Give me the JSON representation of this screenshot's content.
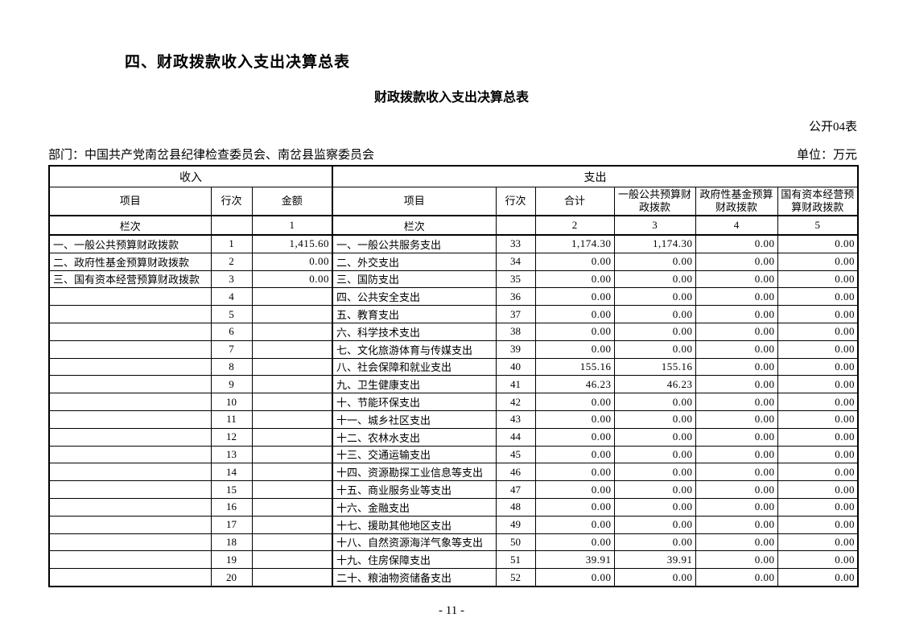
{
  "page": {
    "section_title": "四、财政拨款收入支出决算总表",
    "table_title": "财政拨款收入支出决算总表",
    "table_code": "公开04表",
    "department_label": "部门：中国共产党南岔县纪律检查委员会、南岔县监察委员会",
    "unit_label": "单位：万元",
    "page_number": "- 11 -"
  },
  "table": {
    "income_header": "收入",
    "expense_header": "支出",
    "income_columns": [
      "项目",
      "行次",
      "金额"
    ],
    "expense_columns": [
      "项目",
      "行次",
      "合计",
      "一般公共预算财政拨款",
      "政府性基金预算财政拨款",
      "国有资本经营预算财政拨款"
    ],
    "index_row": [
      "栏次",
      "",
      "1",
      "栏次",
      "",
      "2",
      "3",
      "4",
      "5"
    ],
    "rows": [
      {
        "income_item": "一、一般公共预算财政拨款",
        "income_line": "1",
        "income_amount": "1,415.60",
        "expense_item": "一、一般公共服务支出",
        "expense_line": "33",
        "total": "1,174.30",
        "general_budget": "1,174.30",
        "gov_fund": "0.00",
        "state_capital": "0.00"
      },
      {
        "income_item": "二、政府性基金预算财政拨款",
        "income_line": "2",
        "income_amount": "0.00",
        "expense_item": "二、外交支出",
        "expense_line": "34",
        "total": "0.00",
        "general_budget": "0.00",
        "gov_fund": "0.00",
        "state_capital": "0.00"
      },
      {
        "income_item": "三、国有资本经营预算财政拨款",
        "income_line": "3",
        "income_amount": "0.00",
        "expense_item": "三、国防支出",
        "expense_line": "35",
        "total": "0.00",
        "general_budget": "0.00",
        "gov_fund": "0.00",
        "state_capital": "0.00"
      },
      {
        "income_item": "",
        "income_line": "4",
        "income_amount": "",
        "expense_item": "四、公共安全支出",
        "expense_line": "36",
        "total": "0.00",
        "general_budget": "0.00",
        "gov_fund": "0.00",
        "state_capital": "0.00"
      },
      {
        "income_item": "",
        "income_line": "5",
        "income_amount": "",
        "expense_item": "五、教育支出",
        "expense_line": "37",
        "total": "0.00",
        "general_budget": "0.00",
        "gov_fund": "0.00",
        "state_capital": "0.00"
      },
      {
        "income_item": "",
        "income_line": "6",
        "income_amount": "",
        "expense_item": "六、科学技术支出",
        "expense_line": "38",
        "total": "0.00",
        "general_budget": "0.00",
        "gov_fund": "0.00",
        "state_capital": "0.00"
      },
      {
        "income_item": "",
        "income_line": "7",
        "income_amount": "",
        "expense_item": "七、文化旅游体育与传媒支出",
        "expense_line": "39",
        "total": "0.00",
        "general_budget": "0.00",
        "gov_fund": "0.00",
        "state_capital": "0.00"
      },
      {
        "income_item": "",
        "income_line": "8",
        "income_amount": "",
        "expense_item": "八、社会保障和就业支出",
        "expense_line": "40",
        "total": "155.16",
        "general_budget": "155.16",
        "gov_fund": "0.00",
        "state_capital": "0.00"
      },
      {
        "income_item": "",
        "income_line": "9",
        "income_amount": "",
        "expense_item": "九、卫生健康支出",
        "expense_line": "41",
        "total": "46.23",
        "general_budget": "46.23",
        "gov_fund": "0.00",
        "state_capital": "0.00"
      },
      {
        "income_item": "",
        "income_line": "10",
        "income_amount": "",
        "expense_item": "十、节能环保支出",
        "expense_line": "42",
        "total": "0.00",
        "general_budget": "0.00",
        "gov_fund": "0.00",
        "state_capital": "0.00"
      },
      {
        "income_item": "",
        "income_line": "11",
        "income_amount": "",
        "expense_item": "十一、城乡社区支出",
        "expense_line": "43",
        "total": "0.00",
        "general_budget": "0.00",
        "gov_fund": "0.00",
        "state_capital": "0.00"
      },
      {
        "income_item": "",
        "income_line": "12",
        "income_amount": "",
        "expense_item": "十二、农林水支出",
        "expense_line": "44",
        "total": "0.00",
        "general_budget": "0.00",
        "gov_fund": "0.00",
        "state_capital": "0.00"
      },
      {
        "income_item": "",
        "income_line": "13",
        "income_amount": "",
        "expense_item": "十三、交通运输支出",
        "expense_line": "45",
        "total": "0.00",
        "general_budget": "0.00",
        "gov_fund": "0.00",
        "state_capital": "0.00"
      },
      {
        "income_item": "",
        "income_line": "14",
        "income_amount": "",
        "expense_item": "十四、资源勘探工业信息等支出",
        "expense_line": "46",
        "total": "0.00",
        "general_budget": "0.00",
        "gov_fund": "0.00",
        "state_capital": "0.00"
      },
      {
        "income_item": "",
        "income_line": "15",
        "income_amount": "",
        "expense_item": "十五、商业服务业等支出",
        "expense_line": "47",
        "total": "0.00",
        "general_budget": "0.00",
        "gov_fund": "0.00",
        "state_capital": "0.00"
      },
      {
        "income_item": "",
        "income_line": "16",
        "income_amount": "",
        "expense_item": "十六、金融支出",
        "expense_line": "48",
        "total": "0.00",
        "general_budget": "0.00",
        "gov_fund": "0.00",
        "state_capital": "0.00"
      },
      {
        "income_item": "",
        "income_line": "17",
        "income_amount": "",
        "expense_item": "十七、援助其他地区支出",
        "expense_line": "49",
        "total": "0.00",
        "general_budget": "0.00",
        "gov_fund": "0.00",
        "state_capital": "0.00"
      },
      {
        "income_item": "",
        "income_line": "18",
        "income_amount": "",
        "expense_item": "十八、自然资源海洋气象等支出",
        "expense_line": "50",
        "total": "0.00",
        "general_budget": "0.00",
        "gov_fund": "0.00",
        "state_capital": "0.00"
      },
      {
        "income_item": "",
        "income_line": "19",
        "income_amount": "",
        "expense_item": "十九、住房保障支出",
        "expense_line": "51",
        "total": "39.91",
        "general_budget": "39.91",
        "gov_fund": "0.00",
        "state_capital": "0.00"
      },
      {
        "income_item": "",
        "income_line": "20",
        "income_amount": "",
        "expense_item": "二十、粮油物资储备支出",
        "expense_line": "52",
        "total": "0.00",
        "general_budget": "0.00",
        "gov_fund": "0.00",
        "state_capital": "0.00"
      }
    ]
  }
}
